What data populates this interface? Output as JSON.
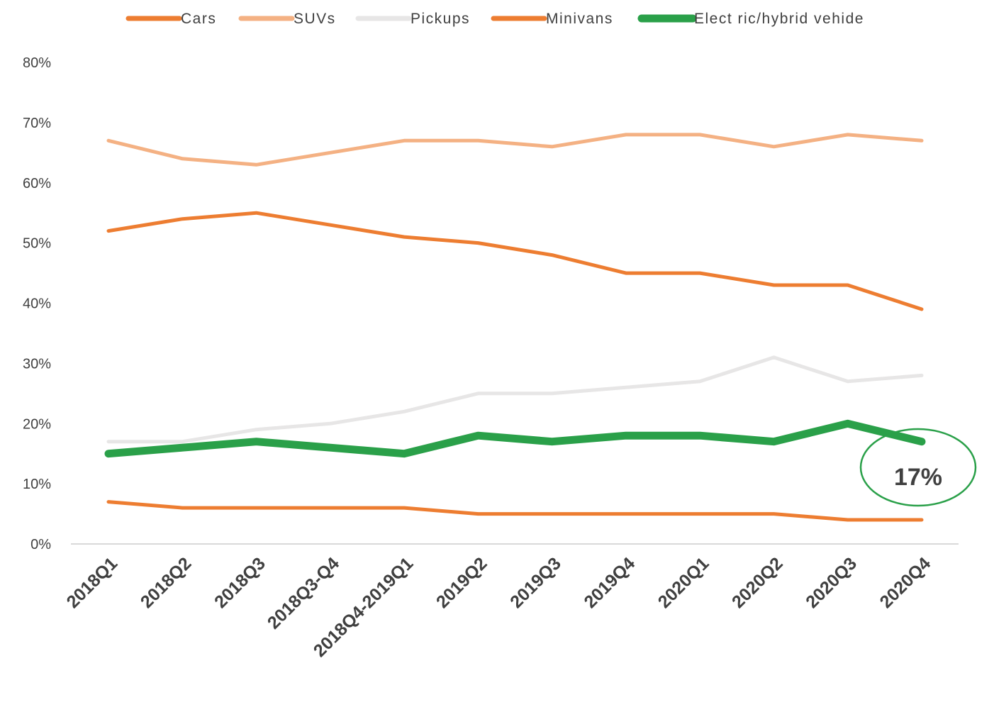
{
  "chart_data": {
    "type": "line",
    "title": "",
    "xlabel": "",
    "ylabel": "",
    "categories": [
      "2018Q1",
      "2018Q2",
      "2018Q3",
      "2018Q3-Q4",
      "2018Q4-2019Q1",
      "2019Q2",
      "2019Q3",
      "2019Q4",
      "2020Q1",
      "2020Q2",
      "2020Q3",
      "2020Q4"
    ],
    "y_ticks": [
      "0%",
      "10%",
      "20%",
      "30%",
      "40%",
      "50%",
      "60%",
      "70%",
      "80%"
    ],
    "ylim": [
      0,
      80
    ],
    "grid": false,
    "legend_position": "top",
    "series": [
      {
        "name": "Cars",
        "color": "#ED7D31",
        "values": [
          52,
          54,
          55,
          53,
          51,
          50,
          48,
          45,
          45,
          43,
          43,
          39
        ]
      },
      {
        "name": "SUVs",
        "color": "#F4B183",
        "values": [
          67,
          64,
          63,
          65,
          67,
          67,
          66,
          68,
          68,
          66,
          68,
          67
        ]
      },
      {
        "name": "Pickups",
        "color": "#E7E6E6",
        "values": [
          17,
          17,
          19,
          20,
          22,
          25,
          25,
          26,
          27,
          31,
          27,
          28
        ]
      },
      {
        "name": "Minivans",
        "color": "#ED7D31",
        "values": [
          7,
          6,
          6,
          6,
          6,
          5,
          5,
          5,
          5,
          5,
          4,
          4
        ]
      },
      {
        "name": "Elect ric/hybrid vehide",
        "color": "#2AA049",
        "values": [
          15,
          16,
          17,
          16,
          15,
          18,
          17,
          18,
          18,
          17,
          20,
          17
        ],
        "emphasis": true
      }
    ],
    "annotation": {
      "text": "17%",
      "series": "Elect ric/hybrid vehide",
      "category": "2020Q4",
      "color": "#2AA049"
    }
  }
}
